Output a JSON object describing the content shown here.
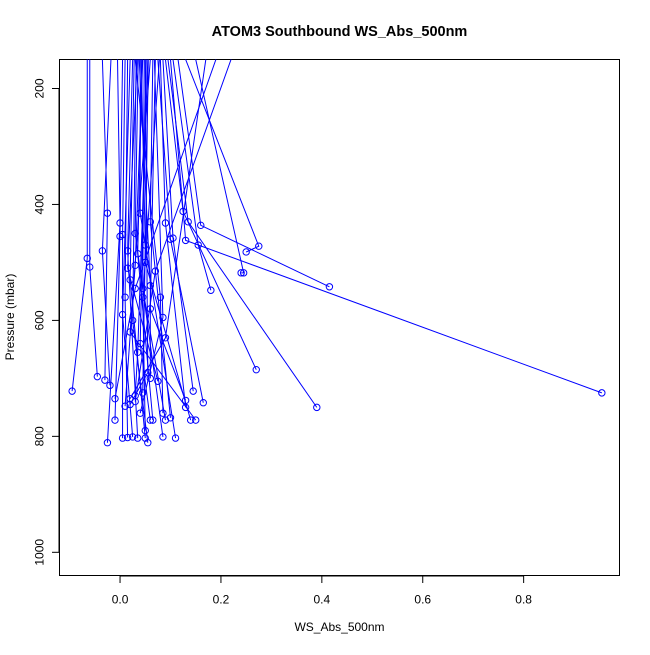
{
  "chart_data": {
    "type": "line",
    "title": "ATOM3 Southbound WS_Abs_500nm",
    "xlabel": "WS_Abs_500nm",
    "ylabel": "Pressure (mbar)",
    "xlim": [
      -0.12,
      0.99
    ],
    "ylim": [
      1040,
      150
    ],
    "y_reversed": true,
    "x_ticks": [
      0.0,
      0.2,
      0.4,
      0.6,
      0.8
    ],
    "x_tick_labels": [
      "0.0",
      "0.2",
      "0.4",
      "0.6",
      "0.8"
    ],
    "y_ticks": [
      200,
      400,
      600,
      800,
      1000
    ],
    "y_tick_labels": [
      "200",
      "400",
      "600",
      "800",
      "1000"
    ],
    "grid": false,
    "legend": "none",
    "color": "#0000ff",
    "marker": "open-circle",
    "series": [
      {
        "points": [
          [
            -0.065,
            150
          ],
          [
            -0.065,
            493
          ],
          [
            -0.095,
            722
          ]
        ]
      },
      {
        "points": [
          [
            -0.06,
            150
          ],
          [
            -0.06,
            508
          ],
          [
            -0.045,
            697
          ]
        ]
      },
      {
        "points": [
          [
            -0.035,
            150
          ],
          [
            -0.025,
            415
          ],
          [
            -0.03,
            703
          ]
        ]
      },
      {
        "points": [
          [
            -0.018,
            150
          ],
          [
            -0.035,
            480
          ],
          [
            -0.02,
            712
          ]
        ]
      },
      {
        "points": [
          [
            -0.005,
            150
          ],
          [
            0.0,
            432
          ],
          [
            -0.025,
            811
          ]
        ]
      },
      {
        "points": [
          [
            0.005,
            150
          ],
          [
            0.0,
            455
          ],
          [
            -0.01,
            772
          ]
        ]
      },
      {
        "points": [
          [
            0.01,
            150
          ],
          [
            0.005,
            452
          ],
          [
            0.005,
            803
          ]
        ]
      },
      {
        "points": [
          [
            0.015,
            150
          ],
          [
            0.01,
            560
          ],
          [
            0.015,
            802
          ]
        ]
      },
      {
        "points": [
          [
            0.02,
            150
          ],
          [
            0.005,
            590
          ],
          [
            0.025,
            801
          ]
        ]
      },
      {
        "points": [
          [
            0.025,
            150
          ],
          [
            0.015,
            480
          ],
          [
            0.035,
            803
          ]
        ]
      },
      {
        "points": [
          [
            0.028,
            150
          ],
          [
            0.02,
            530
          ],
          [
            0.05,
            803
          ]
        ]
      },
      {
        "points": [
          [
            0.032,
            150
          ],
          [
            0.025,
            600
          ],
          [
            0.055,
            811
          ]
        ]
      },
      {
        "points": [
          [
            0.036,
            150
          ],
          [
            0.03,
            450
          ],
          [
            0.085,
            801
          ]
        ]
      },
      {
        "points": [
          [
            0.04,
            150
          ],
          [
            0.04,
            415
          ],
          [
            0.11,
            803
          ]
        ]
      },
      {
        "points": [
          [
            0.044,
            150
          ],
          [
            0.035,
            485
          ],
          [
            0.065,
            772
          ]
        ]
      },
      {
        "points": [
          [
            0.048,
            150
          ],
          [
            0.045,
            545
          ],
          [
            0.09,
            772
          ]
        ]
      },
      {
        "points": [
          [
            0.052,
            150
          ],
          [
            0.04,
            640
          ],
          [
            0.06,
            772
          ]
        ]
      },
      {
        "points": [
          [
            0.056,
            150
          ],
          [
            0.05,
            500
          ],
          [
            0.14,
            772
          ]
        ]
      },
      {
        "points": [
          [
            0.06,
            150
          ],
          [
            0.02,
            620
          ],
          [
            0.15,
            772
          ]
        ]
      },
      {
        "points": [
          [
            0.065,
            150
          ],
          [
            0.06,
            430
          ],
          [
            0.1,
            768
          ]
        ]
      },
      {
        "points": [
          [
            0.07,
            150
          ],
          [
            0.06,
            580
          ],
          [
            0.13,
            738
          ]
        ]
      },
      {
        "points": [
          [
            0.075,
            150
          ],
          [
            0.1,
            460
          ],
          [
            0.165,
            742
          ]
        ]
      },
      {
        "points": [
          [
            0.08,
            150
          ],
          [
            0.09,
            432
          ],
          [
            0.13,
            750
          ]
        ]
      },
      {
        "points": [
          [
            0.085,
            150
          ],
          [
            0.105,
            458
          ],
          [
            0.145,
            722
          ]
        ]
      },
      {
        "points": [
          [
            0.09,
            150
          ],
          [
            0.125,
            412
          ],
          [
            0.27,
            685
          ]
        ]
      },
      {
        "points": [
          [
            0.095,
            150
          ],
          [
            0.135,
            430
          ],
          [
            0.39,
            750
          ]
        ]
      },
      {
        "points": [
          [
            0.1,
            150
          ],
          [
            0.13,
            462
          ],
          [
            0.955,
            725
          ]
        ]
      },
      {
        "points": [
          [
            0.105,
            150
          ],
          [
            0.155,
            470
          ],
          [
            0.18,
            548
          ]
        ]
      },
      {
        "points": [
          [
            0.115,
            150
          ],
          [
            0.16,
            436
          ],
          [
            0.415,
            542
          ]
        ]
      },
      {
        "points": [
          [
            0.13,
            150
          ],
          [
            0.275,
            472
          ],
          [
            0.25,
            482
          ]
        ]
      },
      {
        "points": [
          [
            0.15,
            150
          ],
          [
            0.245,
            518
          ],
          [
            0.24,
            518
          ]
        ]
      },
      {
        "points": [
          [
            0.17,
            150
          ],
          [
            0.09,
            630
          ],
          [
            0.02,
            735
          ]
        ]
      },
      {
        "points": [
          [
            0.19,
            150
          ],
          [
            0.03,
            545
          ],
          [
            -0.01,
            735
          ]
        ]
      },
      {
        "points": [
          [
            0.22,
            150
          ],
          [
            0.07,
            515
          ],
          [
            0.03,
            740
          ]
        ]
      },
      {
        "points": [
          [
            0.045,
            150
          ],
          [
            0.03,
            505
          ],
          [
            0.01,
            748
          ]
        ]
      },
      {
        "points": [
          [
            0.05,
            150
          ],
          [
            0.055,
            690
          ],
          [
            0.02,
            745
          ]
        ]
      },
      {
        "points": [
          [
            0.055,
            150
          ],
          [
            0.035,
            655
          ],
          [
            0.03,
            730
          ]
        ]
      },
      {
        "points": [
          [
            0.042,
            150
          ],
          [
            0.05,
            470
          ],
          [
            0.045,
            725
          ]
        ]
      },
      {
        "points": [
          [
            0.038,
            150
          ],
          [
            0.06,
            540
          ],
          [
            0.06,
            700
          ]
        ]
      },
      {
        "points": [
          [
            0.034,
            150
          ],
          [
            0.015,
            510
          ],
          [
            0.075,
            705
          ]
        ]
      },
      {
        "points": [
          [
            0.03,
            150
          ],
          [
            0.08,
            560
          ],
          [
            0.085,
            760
          ]
        ]
      },
      {
        "points": [
          [
            0.068,
            150
          ],
          [
            0.085,
            595
          ],
          [
            0.04,
            760
          ]
        ]
      },
      {
        "points": [
          [
            0.078,
            150
          ],
          [
            0.045,
            560
          ],
          [
            0.05,
            790
          ]
        ]
      }
    ]
  }
}
